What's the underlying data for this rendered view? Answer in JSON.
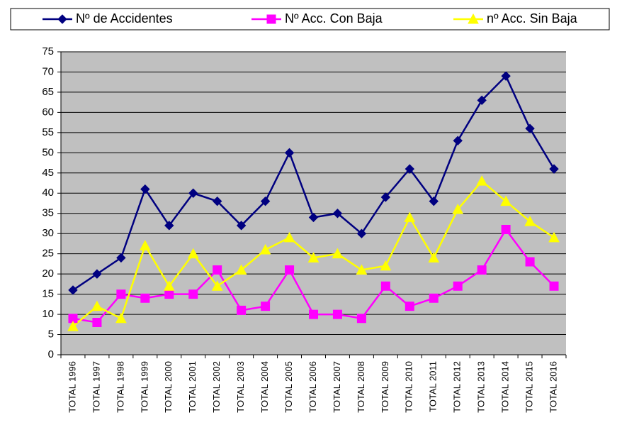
{
  "chart_data": {
    "type": "line",
    "categories": [
      "TOTAL 1996",
      "TOTAL 1997",
      "TOTAL 1998",
      "TOTAL 1999",
      "TOTAL 2000",
      "TOTAL 2001",
      "TOTAL 2002",
      "TOTAL 2003",
      "TOTAL 2004",
      "TOTAL 2005",
      "TOTAL 2006",
      "TOTAL 2007",
      "TOTAL 2008",
      "TOTAL 2009",
      "TOTAL 2010",
      "TOTAL 2011",
      "TOTAL 2012",
      "TOTAL 2013",
      "TOTAL 2014",
      "TOTAL 2015",
      "TOTAL 2016"
    ],
    "series": [
      {
        "name": "Nº de Accidentes",
        "color": "#000080",
        "marker": "diamond",
        "values": [
          16,
          20,
          24,
          41,
          32,
          40,
          38,
          32,
          38,
          50,
          34,
          35,
          30,
          39,
          46,
          38,
          53,
          63,
          69,
          56,
          46
        ]
      },
      {
        "name": "Nº Acc. Con Baja",
        "color": "#ff00ff",
        "marker": "square",
        "values": [
          9,
          8,
          15,
          14,
          15,
          15,
          21,
          11,
          12,
          21,
          10,
          10,
          9,
          17,
          12,
          14,
          17,
          21,
          31,
          23,
          17
        ]
      },
      {
        "name": "nº Acc. Sin Baja",
        "color": "#ffff00",
        "marker": "triangle",
        "values": [
          7,
          12,
          9,
          27,
          17,
          25,
          17,
          21,
          26,
          29,
          24,
          25,
          21,
          22,
          34,
          24,
          36,
          43,
          38,
          33,
          29
        ]
      }
    ],
    "ylim": [
      0,
      75
    ],
    "yticks": [
      0,
      5,
      10,
      15,
      20,
      25,
      30,
      35,
      40,
      45,
      50,
      55,
      60,
      65,
      70,
      75
    ],
    "grid": true,
    "legend": "top",
    "plot_background": "#c0c0c0"
  }
}
